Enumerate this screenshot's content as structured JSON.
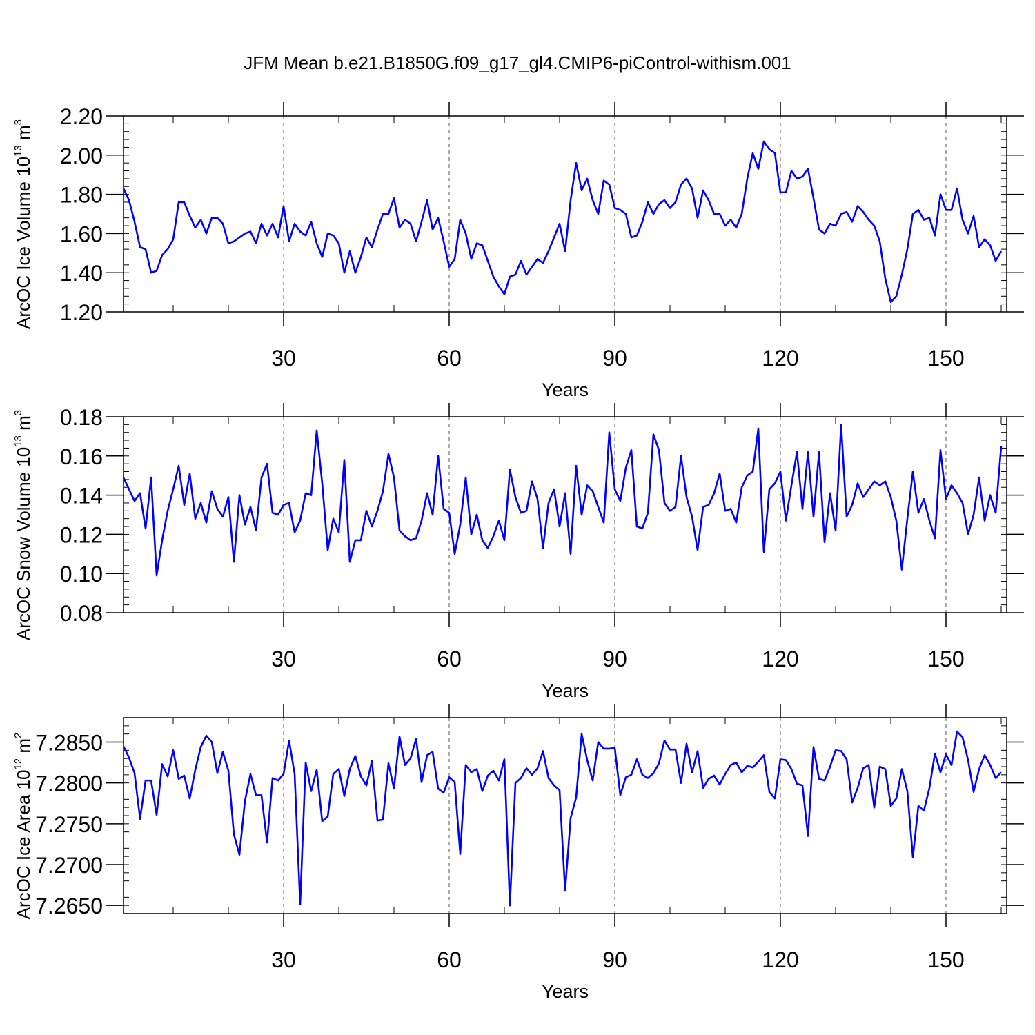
{
  "figure_title": "JFM Mean b.e21.B1850G.f09_g17_gl4.CMIP6-piControl-withism.001",
  "colors": {
    "line": "#0000ff",
    "axis": "#000000",
    "grid": "#555555"
  },
  "chart_data": [
    {
      "type": "line",
      "xlabel": "Years",
      "ylabel": {
        "main": "ArcOC Ice Volume 10",
        "exp": "13",
        "unit": " m",
        "unit_exp": "3"
      },
      "xlim": [
        1,
        161
      ],
      "ylim": [
        1.2,
        2.2
      ],
      "xticks": [
        30,
        60,
        90,
        120,
        150
      ],
      "xtick_labels": [
        "30",
        "60",
        "90",
        "120",
        "150"
      ],
      "yticks": [
        1.2,
        1.4,
        1.6,
        1.8,
        2.0,
        2.2
      ],
      "ytick_labels": [
        "1.20",
        "1.40",
        "1.60",
        "1.80",
        "2.00",
        "2.20"
      ],
      "x_start": 1,
      "series": [
        {
          "name": "ArcOC Ice Volume",
          "values": [
            1.83,
            1.77,
            1.66,
            1.53,
            1.52,
            1.4,
            1.41,
            1.49,
            1.52,
            1.57,
            1.76,
            1.76,
            1.69,
            1.63,
            1.67,
            1.6,
            1.68,
            1.68,
            1.65,
            1.55,
            1.56,
            1.58,
            1.6,
            1.61,
            1.55,
            1.65,
            1.59,
            1.65,
            1.58,
            1.74,
            1.56,
            1.65,
            1.61,
            1.59,
            1.66,
            1.55,
            1.48,
            1.6,
            1.59,
            1.55,
            1.4,
            1.51,
            1.4,
            1.48,
            1.58,
            1.53,
            1.62,
            1.7,
            1.7,
            1.78,
            1.63,
            1.67,
            1.65,
            1.56,
            1.66,
            1.77,
            1.62,
            1.68,
            1.56,
            1.43,
            1.47,
            1.67,
            1.6,
            1.47,
            1.55,
            1.54,
            1.46,
            1.38,
            1.33,
            1.29,
            1.38,
            1.39,
            1.46,
            1.39,
            1.43,
            1.47,
            1.45,
            1.51,
            1.58,
            1.65,
            1.51,
            1.77,
            1.96,
            1.82,
            1.88,
            1.77,
            1.7,
            1.87,
            1.85,
            1.73,
            1.72,
            1.7,
            1.58,
            1.59,
            1.66,
            1.76,
            1.7,
            1.75,
            1.77,
            1.73,
            1.76,
            1.85,
            1.88,
            1.83,
            1.68,
            1.82,
            1.77,
            1.7,
            1.7,
            1.64,
            1.67,
            1.63,
            1.7,
            1.88,
            2.01,
            1.93,
            2.07,
            2.03,
            2.01,
            1.81,
            1.81,
            1.92,
            1.88,
            1.89,
            1.93,
            1.78,
            1.62,
            1.6,
            1.65,
            1.64,
            1.7,
            1.71,
            1.66,
            1.74,
            1.71,
            1.67,
            1.64,
            1.56,
            1.37,
            1.25,
            1.28,
            1.39,
            1.52,
            1.7,
            1.72,
            1.67,
            1.68,
            1.59,
            1.8,
            1.72,
            1.72,
            1.83,
            1.67,
            1.6,
            1.69,
            1.53,
            1.57,
            1.54,
            1.46,
            1.51
          ]
        }
      ]
    },
    {
      "type": "line",
      "xlabel": "Years",
      "ylabel": {
        "main": "ArcOC Snow Volume 10",
        "exp": "13",
        "unit": " m",
        "unit_exp": "3"
      },
      "xlim": [
        1,
        161
      ],
      "ylim": [
        0.08,
        0.18
      ],
      "xticks": [
        30,
        60,
        90,
        120,
        150
      ],
      "xtick_labels": [
        "30",
        "60",
        "90",
        "120",
        "150"
      ],
      "yticks": [
        0.08,
        0.1,
        0.12,
        0.14,
        0.16,
        0.18
      ],
      "ytick_labels": [
        "0.08",
        "0.10",
        "0.12",
        "0.14",
        "0.16",
        "0.18"
      ],
      "x_start": 1,
      "series": [
        {
          "name": "ArcOC Snow Volume",
          "values": [
            0.149,
            0.143,
            0.137,
            0.141,
            0.123,
            0.149,
            0.099,
            0.117,
            0.132,
            0.143,
            0.155,
            0.135,
            0.151,
            0.128,
            0.136,
            0.126,
            0.142,
            0.133,
            0.129,
            0.139,
            0.106,
            0.14,
            0.125,
            0.134,
            0.122,
            0.149,
            0.156,
            0.131,
            0.13,
            0.135,
            0.136,
            0.121,
            0.127,
            0.141,
            0.14,
            0.173,
            0.146,
            0.112,
            0.128,
            0.121,
            0.158,
            0.106,
            0.117,
            0.117,
            0.132,
            0.124,
            0.132,
            0.142,
            0.161,
            0.149,
            0.122,
            0.119,
            0.117,
            0.118,
            0.127,
            0.141,
            0.13,
            0.16,
            0.133,
            0.131,
            0.11,
            0.125,
            0.149,
            0.12,
            0.13,
            0.117,
            0.113,
            0.119,
            0.127,
            0.117,
            0.153,
            0.139,
            0.131,
            0.132,
            0.147,
            0.138,
            0.113,
            0.136,
            0.143,
            0.124,
            0.141,
            0.11,
            0.155,
            0.13,
            0.145,
            0.142,
            0.134,
            0.126,
            0.172,
            0.143,
            0.137,
            0.154,
            0.163,
            0.124,
            0.123,
            0.131,
            0.171,
            0.163,
            0.136,
            0.132,
            0.134,
            0.16,
            0.139,
            0.129,
            0.112,
            0.134,
            0.135,
            0.141,
            0.151,
            0.132,
            0.133,
            0.126,
            0.144,
            0.15,
            0.152,
            0.174,
            0.111,
            0.143,
            0.146,
            0.152,
            0.127,
            0.145,
            0.162,
            0.133,
            0.162,
            0.129,
            0.162,
            0.116,
            0.141,
            0.122,
            0.176,
            0.129,
            0.135,
            0.146,
            0.139,
            0.143,
            0.147,
            0.145,
            0.147,
            0.139,
            0.127,
            0.102,
            0.128,
            0.152,
            0.131,
            0.138,
            0.127,
            0.118,
            0.163,
            0.138,
            0.145,
            0.141,
            0.136,
            0.12,
            0.13,
            0.149,
            0.127,
            0.14,
            0.131,
            0.165
          ]
        }
      ]
    },
    {
      "type": "line",
      "xlabel": "Years",
      "ylabel": {
        "main": "ArcOC Ice Area 10",
        "exp": "12",
        "unit": " m",
        "unit_exp": "2"
      },
      "xlim": [
        1,
        161
      ],
      "ylim": [
        7.264,
        7.288
      ],
      "xticks": [
        30,
        60,
        90,
        120,
        150
      ],
      "xtick_labels": [
        "30",
        "60",
        "90",
        "120",
        "150"
      ],
      "yticks": [
        7.265,
        7.27,
        7.275,
        7.28,
        7.285
      ],
      "ytick_labels": [
        "7.2650",
        "7.2700",
        "7.2750",
        "7.2800",
        "7.2850"
      ],
      "x_start": 1,
      "series": [
        {
          "name": "ArcOC Ice Area",
          "values": [
            7.2845,
            7.2831,
            7.2812,
            7.2756,
            7.2803,
            7.2803,
            7.2761,
            7.2823,
            7.2808,
            7.284,
            7.2805,
            7.2809,
            7.2781,
            7.2816,
            7.2844,
            7.2858,
            7.285,
            7.2812,
            7.2838,
            7.2815,
            7.2737,
            7.2712,
            7.2778,
            7.2811,
            7.2785,
            7.2785,
            7.2727,
            7.2806,
            7.2803,
            7.2811,
            7.2852,
            7.2811,
            7.2651,
            7.2825,
            7.279,
            7.2816,
            7.2753,
            7.2759,
            7.2811,
            7.2817,
            7.2784,
            7.2817,
            7.2833,
            7.2808,
            7.2797,
            7.2827,
            7.2754,
            7.2755,
            7.2824,
            7.2793,
            7.2857,
            7.2822,
            7.283,
            7.2854,
            7.2801,
            7.2834,
            7.2838,
            7.2793,
            7.2788,
            7.2807,
            7.2801,
            7.2713,
            7.2822,
            7.2813,
            7.2817,
            7.279,
            7.2809,
            7.2815,
            7.2803,
            7.2829,
            7.265,
            7.28,
            7.2806,
            7.2818,
            7.281,
            7.2818,
            7.2839,
            7.2806,
            7.2797,
            7.2791,
            7.2668,
            7.2757,
            7.2782,
            7.286,
            7.2828,
            7.2803,
            7.285,
            7.2842,
            7.2842,
            7.2843,
            7.2785,
            7.2807,
            7.281,
            7.2829,
            7.281,
            7.2806,
            7.2812,
            7.2824,
            7.2852,
            7.2841,
            7.2841,
            7.28,
            7.2848,
            7.2813,
            7.2839,
            7.2794,
            7.2805,
            7.2809,
            7.2798,
            7.2811,
            7.2822,
            7.2825,
            7.2813,
            7.2821,
            7.2819,
            7.2826,
            7.2834,
            7.2789,
            7.2781,
            7.2829,
            7.2828,
            7.2817,
            7.2799,
            7.2797,
            7.2735,
            7.2844,
            7.2805,
            7.2803,
            7.282,
            7.284,
            7.2839,
            7.2829,
            7.2776,
            7.2794,
            7.2818,
            7.2822,
            7.277,
            7.282,
            7.2817,
            7.2772,
            7.2781,
            7.2817,
            7.279,
            7.2709,
            7.2772,
            7.2766,
            7.2794,
            7.2836,
            7.2813,
            7.2835,
            7.2822,
            7.2863,
            7.2856,
            7.2828,
            7.2789,
            7.2817,
            7.2834,
            7.2822,
            7.2806,
            7.2813
          ]
        }
      ]
    }
  ]
}
